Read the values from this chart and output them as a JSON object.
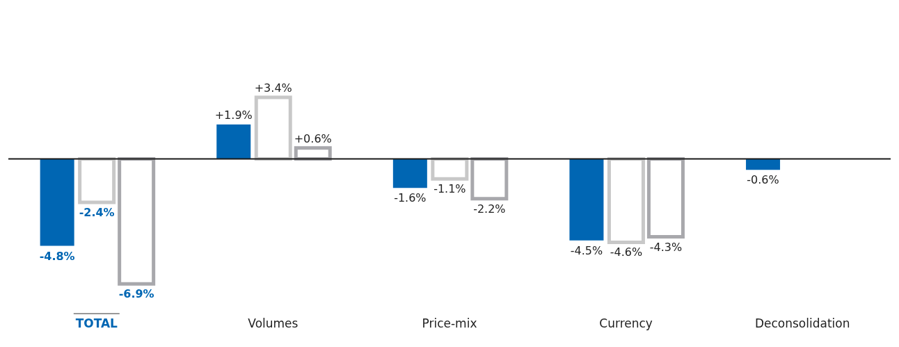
{
  "chart_data": {
    "type": "bar",
    "categories": [
      "TOTAL",
      "Volumes",
      "Price-mix",
      "Currency",
      "Deconsolidation"
    ],
    "series": [
      {
        "color": "#0066b3",
        "values": [
          -4.8,
          1.9,
          -1.6,
          -4.5,
          -0.6
        ],
        "value_labels": [
          "-4.8%",
          "+1.9%",
          "-1.6%",
          "-4.5%",
          "-0.6%"
        ]
      },
      {
        "color": "#c8c8c8",
        "values": [
          -2.4,
          3.4,
          -1.1,
          -4.6,
          null
        ],
        "value_labels": [
          "-2.4%",
          "+3.4%",
          "-1.1%",
          "-4.6%",
          null
        ]
      },
      {
        "color": "#a8a8ac",
        "values": [
          -6.9,
          0.6,
          -2.2,
          -4.3,
          null
        ],
        "value_labels": [
          "-6.9%",
          "+0.6%",
          "-2.2%",
          "-4.3%",
          null
        ]
      }
    ],
    "ref_lines": [
      {
        "axis": "y",
        "value": 0,
        "color": "#1a1a1a"
      }
    ],
    "tick_labels": "x",
    "grid": false,
    "legend": false
  }
}
